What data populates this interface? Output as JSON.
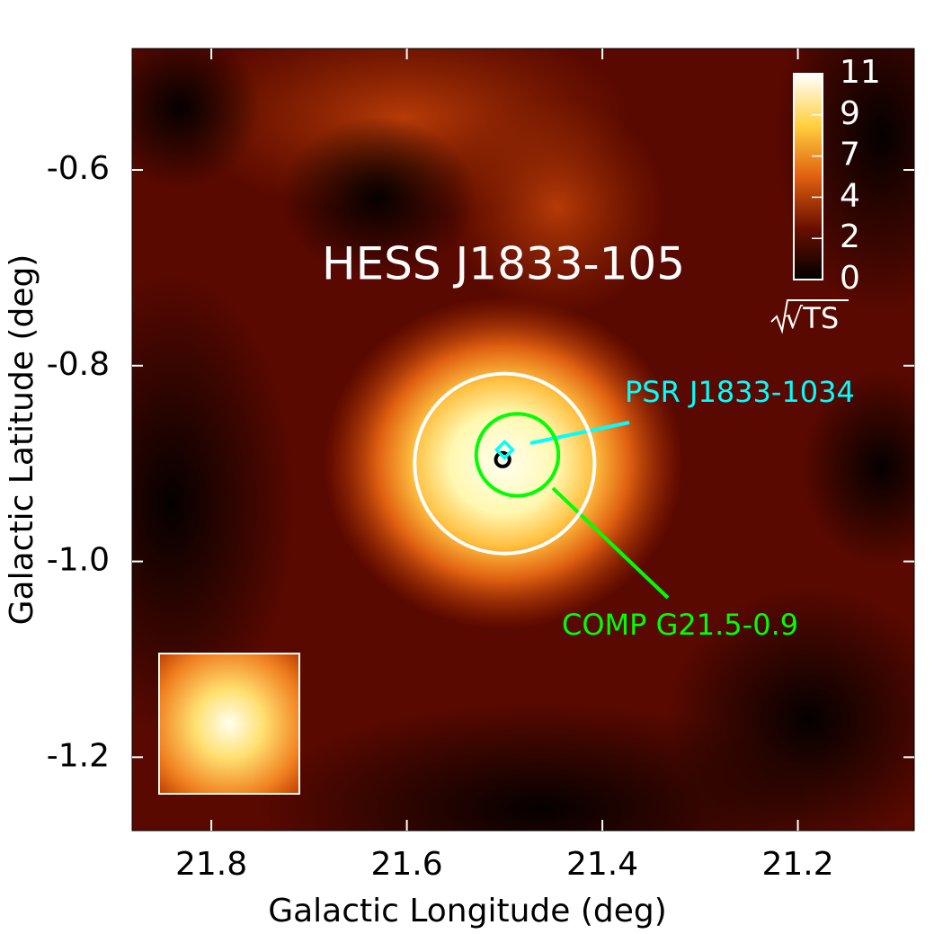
{
  "chart_data": {
    "type": "skymap",
    "xlabel": "Galactic Longitude (deg)",
    "ylabel": "Galactic Latitude (deg)",
    "xlim": [
      21.881,
      21.081
    ],
    "ylim": [
      -1.275,
      -0.476
    ],
    "xticks": [
      21.8,
      21.6,
      21.4,
      21.2
    ],
    "yticks": [
      -0.6,
      -0.8,
      {
        "value": -1.0,
        "label": "-1.0"
      },
      -1.2
    ],
    "colorbar": {
      "label": "√TS",
      "lim": [
        0,
        11
      ],
      "ticks": [
        0,
        {
          "value": 2.2,
          "label": "2"
        },
        {
          "value": 4.4,
          "label": "4"
        },
        {
          "value": 6.6,
          "label": "7"
        },
        {
          "value": 8.8,
          "label": "9"
        },
        11
      ]
    },
    "annotations": [
      {
        "text": "HESS J1833-105",
        "color": "#ffffff"
      },
      {
        "text": "PSR J1833-1034",
        "color": "#00ffff"
      },
      {
        "text": "COMP G21.5-0.9",
        "color": "#00ff00"
      }
    ],
    "regions": [
      {
        "l": 21.5,
        "b": -0.9,
        "r": 0.092,
        "color": "#ffffff"
      },
      {
        "l": 21.487,
        "b": -0.891,
        "r": 0.042,
        "color": "#00ff00"
      },
      {
        "l": 21.502,
        "b": -0.896,
        "r": 0.007,
        "color": "#000000"
      }
    ],
    "points": [
      {
        "l": 21.5,
        "b": -0.886,
        "color": "#00ffff"
      }
    ]
  }
}
